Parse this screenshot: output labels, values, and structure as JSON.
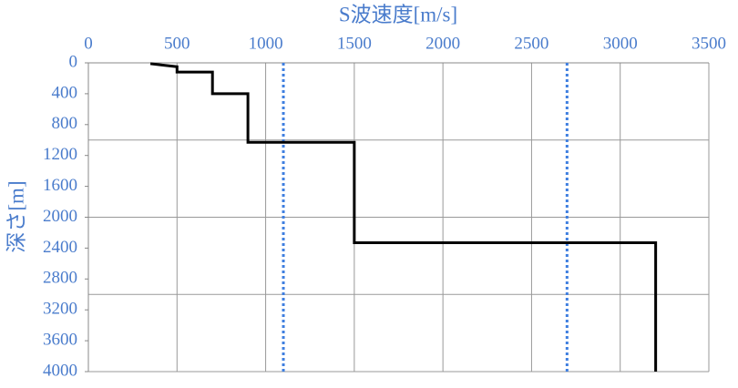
{
  "chart_data": {
    "type": "line",
    "x_label": "S波速度[m/s]",
    "y_label": "深さ[m]",
    "xlim": [
      0,
      3500
    ],
    "xticks": [
      0,
      500,
      1000,
      1500,
      2000,
      2500,
      3000,
      3500
    ],
    "ylim": [
      0,
      4000
    ],
    "yticks": [
      0,
      400,
      800,
      1200,
      1600,
      2000,
      2400,
      2800,
      3200,
      3600,
      4000
    ],
    "y_inverted": true,
    "x_axis_position": "top",
    "xgrid": true,
    "ygrid_values": [
      1000,
      2000,
      3000,
      4000
    ],
    "grid_color": "#999999",
    "series": [
      {
        "color": "#000000",
        "x": [
          350,
          420,
          500,
          500,
          700,
          700,
          900,
          900,
          1500,
          1500,
          3200,
          3200
        ],
        "values": [
          10,
          30,
          50,
          120,
          120,
          400,
          400,
          1030,
          1030,
          2330,
          2330,
          4000
        ]
      }
    ],
    "reference_lines": [
      {
        "x": 1100,
        "color": "#3f7fe0"
      },
      {
        "x": 2700,
        "color": "#3f7fe0"
      }
    ],
    "reference_line_style": "dotted"
  }
}
